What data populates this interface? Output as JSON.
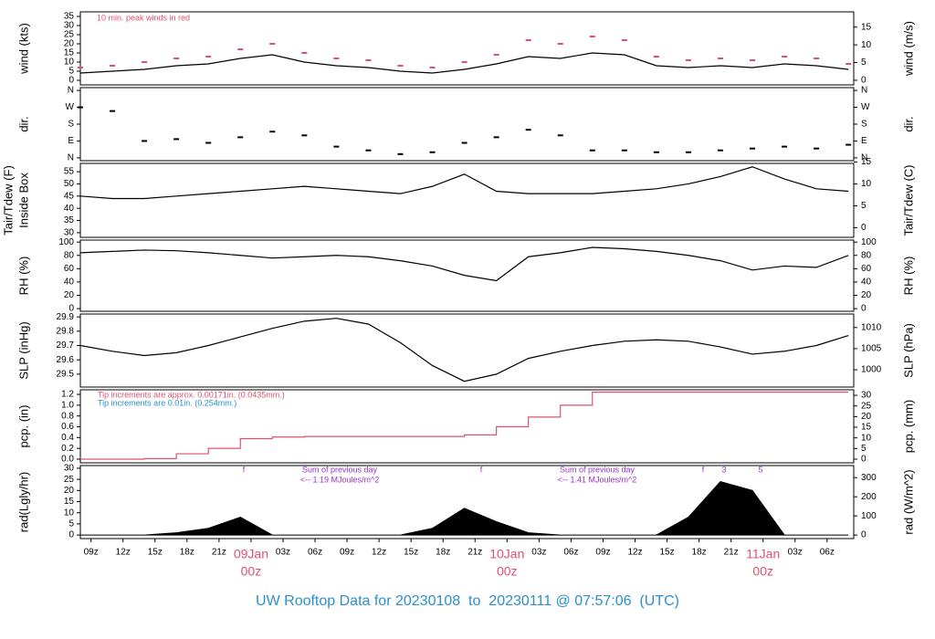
{
  "chart_data": [
    {
      "type": "line",
      "ylabel": "wind (kts)",
      "y2label": "wind (m/s)",
      "annotation": "10 min. peak winds in red",
      "x": [
        8,
        11,
        14,
        17,
        20,
        23,
        26,
        29,
        32,
        35,
        38,
        41,
        44,
        47,
        50,
        53,
        56,
        59,
        62,
        65,
        68,
        71,
        74,
        77,
        80
      ],
      "ylim": [
        -2.5,
        37.5
      ],
      "yticks": [
        0,
        5,
        10,
        15,
        20,
        25,
        30,
        35
      ],
      "y2lim": [
        -1.3,
        19.3
      ],
      "y2ticks": [
        0,
        5,
        10,
        15
      ],
      "series": [
        {
          "name": "wind",
          "color": "#000000",
          "marker": "line",
          "values": [
            4,
            5,
            6,
            8,
            9,
            12,
            14,
            10,
            8,
            7,
            5,
            4,
            6,
            9,
            13,
            12,
            15,
            14,
            8,
            7,
            8,
            7,
            9,
            8,
            6
          ]
        },
        {
          "name": "peak",
          "color": "#e0506e",
          "marker": "dash",
          "values": [
            7,
            8,
            10,
            12,
            13,
            17,
            20,
            15,
            12,
            11,
            8,
            7,
            10,
            14,
            22,
            20,
            24,
            22,
            13,
            11,
            12,
            11,
            13,
            12,
            9
          ]
        }
      ]
    },
    {
      "type": "scatter",
      "ylabel": "dir.",
      "y2label": "dir.",
      "x": [
        8,
        11,
        14,
        17,
        20,
        23,
        26,
        29,
        32,
        35,
        38,
        41,
        44,
        47,
        50,
        53,
        56,
        59,
        62,
        65,
        68,
        71,
        74,
        77,
        80
      ],
      "ylim": [
        -15,
        375
      ],
      "yticks": [
        {
          "value": 0,
          "label": "N"
        },
        {
          "value": 90,
          "label": "E"
        },
        {
          "value": 180,
          "label": "S"
        },
        {
          "value": 270,
          "label": "W"
        },
        {
          "value": 360,
          "label": "N"
        }
      ],
      "y2lim": [
        -15,
        375
      ],
      "y2ticks": [
        {
          "value": 0,
          "label": "N"
        },
        {
          "value": 90,
          "label": "E"
        },
        {
          "value": 180,
          "label": "S"
        },
        {
          "value": 270,
          "label": "W"
        },
        {
          "value": 360,
          "label": "N"
        }
      ],
      "series": [
        {
          "name": "dir",
          "color": "#000000",
          "values": [
            270,
            250,
            90,
            100,
            80,
            110,
            140,
            120,
            60,
            40,
            20,
            30,
            80,
            110,
            150,
            120,
            40,
            40,
            30,
            30,
            40,
            50,
            60,
            50,
            70
          ]
        }
      ]
    },
    {
      "type": "line",
      "ylabel": [
        "Tair/Tdew (F)",
        "Inside Box"
      ],
      "y2label": "Tair/Tdew (C)",
      "x": [
        8,
        11,
        14,
        17,
        20,
        23,
        26,
        29,
        32,
        35,
        38,
        41,
        44,
        47,
        50,
        53,
        56,
        59,
        62,
        65,
        68,
        71,
        74,
        77,
        80
      ],
      "ylim": [
        28.1,
        58.4
      ],
      "yticks": [
        30,
        35,
        40,
        45,
        50,
        55
      ],
      "y2lim": [
        -2.2,
        14.7
      ],
      "y2ticks": [
        0,
        5,
        10,
        15
      ],
      "series": [
        {
          "name": "Tair",
          "color": "#000000",
          "marker": "line",
          "values": [
            45,
            44,
            44,
            45,
            46,
            47,
            48,
            49,
            48,
            47,
            46,
            49,
            54,
            47,
            46,
            46,
            46,
            47,
            48,
            50,
            53,
            57,
            52,
            48,
            47
          ]
        }
      ]
    },
    {
      "type": "line",
      "ylabel": "RH (%)",
      "y2label": "RH (%)",
      "x": [
        8,
        11,
        14,
        17,
        20,
        23,
        26,
        29,
        32,
        35,
        38,
        41,
        44,
        47,
        50,
        53,
        56,
        59,
        62,
        65,
        68,
        71,
        74,
        77,
        80
      ],
      "ylim": [
        -4,
        103
      ],
      "yticks": [
        0,
        20,
        40,
        60,
        80,
        100
      ],
      "y2lim": [
        -4,
        103
      ],
      "y2ticks": [
        0,
        20,
        40,
        60,
        80,
        100
      ],
      "series": [
        {
          "name": "RH",
          "color": "#000000",
          "marker": "line",
          "values": [
            84,
            86,
            88,
            87,
            84,
            80,
            76,
            78,
            80,
            78,
            72,
            64,
            50,
            42,
            78,
            84,
            92,
            90,
            86,
            80,
            72,
            58,
            64,
            62,
            80
          ]
        }
      ]
    },
    {
      "type": "line",
      "ylabel": "SLP (inHg)",
      "y2label": "SLP (hPa)",
      "x": [
        8,
        11,
        14,
        17,
        20,
        23,
        26,
        29,
        32,
        35,
        38,
        41,
        44,
        47,
        50,
        53,
        56,
        59,
        62,
        65,
        68,
        71,
        74,
        77,
        80
      ],
      "ylim": [
        29.41,
        29.92
      ],
      "yticks": [
        29.5,
        29.6,
        29.7,
        29.8,
        29.9
      ],
      "y2lim": [
        995.9,
        1013.2
      ],
      "y2ticks": [
        1000,
        1005,
        1010
      ],
      "series": [
        {
          "name": "SLP",
          "color": "#000000",
          "marker": "line",
          "values": [
            29.7,
            29.66,
            29.63,
            29.65,
            29.7,
            29.76,
            29.82,
            29.87,
            29.89,
            29.85,
            29.72,
            29.56,
            29.45,
            29.5,
            29.61,
            29.66,
            29.7,
            29.73,
            29.74,
            29.73,
            29.69,
            29.64,
            29.66,
            29.7,
            29.77
          ]
        }
      ]
    },
    {
      "type": "step",
      "ylabel": "pcp. (in)",
      "y2label": "pcp. (mm)",
      "notes": [
        {
          "text": "Tip increments are approx. 0.00171in. (0.0435mm.)",
          "color": "#e0506e"
        },
        {
          "text": "Tip increments are 0.01in. (0.254mm.)",
          "color": "#2a8fd0"
        }
      ],
      "x": [
        8,
        11,
        14,
        17,
        20,
        23,
        26,
        29,
        32,
        35,
        38,
        41,
        44,
        47,
        50,
        53,
        56,
        59,
        62,
        65,
        68,
        71,
        74,
        77,
        80
      ],
      "ylim": [
        -0.068,
        1.285
      ],
      "yticks": [
        {
          "value": 0,
          "label": "0.0"
        },
        {
          "value": 0.2,
          "label": "0.2"
        },
        {
          "value": 0.4,
          "label": "0.4"
        },
        {
          "value": 0.6,
          "label": "0.6"
        },
        {
          "value": 0.8,
          "label": "0.8"
        },
        {
          "value": 1,
          "label": "1.0"
        },
        {
          "value": 1.2,
          "label": "1.2"
        }
      ],
      "y2lim": [
        -1.72,
        32.6
      ],
      "y2ticks": [
        0,
        5,
        10,
        15,
        20,
        25,
        30
      ],
      "series": [
        {
          "name": "pcp",
          "color": "#e0506e",
          "values": [
            0,
            0,
            0.01,
            0.1,
            0.2,
            0.38,
            0.41,
            0.42,
            0.42,
            0.42,
            0.42,
            0.42,
            0.45,
            0.6,
            0.78,
            1.0,
            1.24,
            1.24,
            1.24,
            1.24,
            1.24,
            1.24,
            1.24,
            1.24,
            1.24
          ]
        }
      ]
    },
    {
      "type": "area",
      "ylabel": "rad(Lgly/hr)",
      "y2label": "rad (W/m^2)",
      "notes": [
        "f",
        "Sum of previous day",
        "<-- 1.19 MJoules/m^2",
        "f",
        "Sum of previous day",
        "<-- 1.41 MJoules/m^2",
        "f",
        "3",
        "5"
      ],
      "x": [
        8,
        11,
        14,
        17,
        20,
        23,
        26,
        29,
        32,
        35,
        38,
        41,
        44,
        47,
        50,
        53,
        56,
        59,
        62,
        65,
        68,
        71,
        74,
        77,
        80
      ],
      "ylim": [
        -1.6,
        31.2
      ],
      "yticks": [
        0,
        5,
        10,
        15,
        20,
        25,
        30
      ],
      "y2lim": [
        -18.6,
        363
      ],
      "y2ticks": [
        0,
        100,
        200,
        300
      ],
      "xlim": [
        8,
        80.5
      ],
      "xticks": [
        {
          "value": 9,
          "label": "09z"
        },
        {
          "value": 12,
          "label": "12z"
        },
        {
          "value": 15,
          "label": "15z"
        },
        {
          "value": 18,
          "label": "18z"
        },
        {
          "value": 21,
          "label": "21z"
        },
        {
          "value": 24,
          "label": "09Jan",
          "sublabel": "00z"
        },
        {
          "value": 27,
          "label": "03z"
        },
        {
          "value": 30,
          "label": "06z"
        },
        {
          "value": 33,
          "label": "09z"
        },
        {
          "value": 36,
          "label": "12z"
        },
        {
          "value": 39,
          "label": "15z"
        },
        {
          "value": 42,
          "label": "18z"
        },
        {
          "value": 45,
          "label": "21z"
        },
        {
          "value": 48,
          "label": "10Jan",
          "sublabel": "00z"
        },
        {
          "value": 51,
          "label": "03z"
        },
        {
          "value": 54,
          "label": "06z"
        },
        {
          "value": 57,
          "label": "09z"
        },
        {
          "value": 60,
          "label": "12z"
        },
        {
          "value": 63,
          "label": "15z"
        },
        {
          "value": 66,
          "label": "18z"
        },
        {
          "value": 69,
          "label": "21z"
        },
        {
          "value": 72,
          "label": "11Jan",
          "sublabel": "00z"
        },
        {
          "value": 75,
          "label": "03z"
        },
        {
          "value": 78,
          "label": "06z"
        }
      ],
      "series": [
        {
          "name": "rad",
          "color": "#000000",
          "values": [
            0,
            0,
            0,
            1,
            3,
            8,
            0,
            0,
            0,
            0,
            0,
            3,
            12,
            6,
            1,
            0,
            0,
            0,
            0,
            8,
            24,
            20,
            0,
            0,
            0
          ]
        }
      ],
      "footer": "UW Rooftop Data for 20230108  to  20230111 @ 07:57:06  (UTC)"
    }
  ]
}
